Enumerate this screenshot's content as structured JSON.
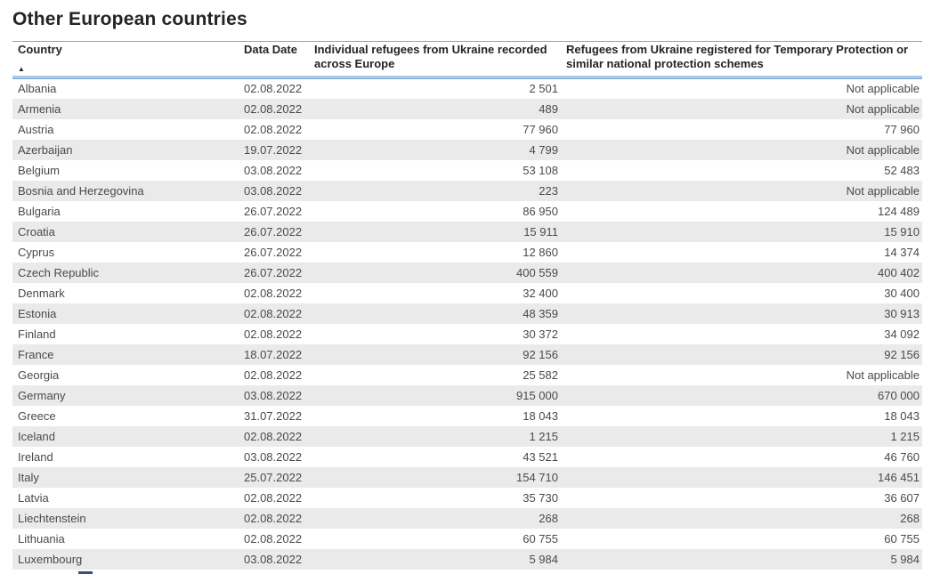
{
  "title": "Other European countries",
  "icons": {
    "sort_ascending": "▲"
  },
  "colors": {
    "header_separator": "#a9cbe9",
    "alt_row_background": "#eaeaea",
    "header_text": "#252423",
    "body_text": "#4a4a4a"
  },
  "table": {
    "columns": [
      {
        "label": "Country",
        "align": "left",
        "sort": "ascending"
      },
      {
        "label": "Data Date",
        "align": "left",
        "sort": "none"
      },
      {
        "label": "Individual refugees from Ukraine recorded across Europe",
        "align": "left",
        "sort": "none"
      },
      {
        "label": "Refugees from Ukraine registered for Temporary Protection or similar national protection schemes",
        "align": "left",
        "sort": "none"
      }
    ],
    "na_display": "Not applicable",
    "rows": [
      {
        "country": "Albania",
        "date": "02.08.2022",
        "individual": "2 501",
        "temporary": "Not applicable"
      },
      {
        "country": "Armenia",
        "date": "02.08.2022",
        "individual": "489",
        "temporary": "Not applicable"
      },
      {
        "country": "Austria",
        "date": "02.08.2022",
        "individual": "77 960",
        "temporary": "77 960"
      },
      {
        "country": "Azerbaijan",
        "date": "19.07.2022",
        "individual": "4 799",
        "temporary": "Not applicable"
      },
      {
        "country": "Belgium",
        "date": "03.08.2022",
        "individual": "53 108",
        "temporary": "52 483"
      },
      {
        "country": "Bosnia and Herzegovina",
        "date": "03.08.2022",
        "individual": "223",
        "temporary": "Not applicable"
      },
      {
        "country": "Bulgaria",
        "date": "26.07.2022",
        "individual": "86 950",
        "temporary": "124 489"
      },
      {
        "country": "Croatia",
        "date": "26.07.2022",
        "individual": "15 911",
        "temporary": "15 910"
      },
      {
        "country": "Cyprus",
        "date": "26.07.2022",
        "individual": "12 860",
        "temporary": "14 374"
      },
      {
        "country": "Czech Republic",
        "date": "26.07.2022",
        "individual": "400 559",
        "temporary": "400 402"
      },
      {
        "country": "Denmark",
        "date": "02.08.2022",
        "individual": "32 400",
        "temporary": "30 400"
      },
      {
        "country": "Estonia",
        "date": "02.08.2022",
        "individual": "48 359",
        "temporary": "30 913"
      },
      {
        "country": "Finland",
        "date": "02.08.2022",
        "individual": "30 372",
        "temporary": "34 092"
      },
      {
        "country": "France",
        "date": "18.07.2022",
        "individual": "92 156",
        "temporary": "92 156"
      },
      {
        "country": "Georgia",
        "date": "02.08.2022",
        "individual": "25 582",
        "temporary": "Not applicable"
      },
      {
        "country": "Germany",
        "date": "03.08.2022",
        "individual": "915 000",
        "temporary": "670 000"
      },
      {
        "country": "Greece",
        "date": "31.07.2022",
        "individual": "18 043",
        "temporary": "18 043"
      },
      {
        "country": "Iceland",
        "date": "02.08.2022",
        "individual": "1 215",
        "temporary": "1 215"
      },
      {
        "country": "Ireland",
        "date": "03.08.2022",
        "individual": "43 521",
        "temporary": "46 760"
      },
      {
        "country": "Italy",
        "date": "25.07.2022",
        "individual": "154 710",
        "temporary": "146 451"
      },
      {
        "country": "Latvia",
        "date": "02.08.2022",
        "individual": "35 730",
        "temporary": "36 607"
      },
      {
        "country": "Liechtenstein",
        "date": "02.08.2022",
        "individual": "268",
        "temporary": "268"
      },
      {
        "country": "Lithuania",
        "date": "02.08.2022",
        "individual": "60 755",
        "temporary": "60 755"
      },
      {
        "country": "Luxembourg",
        "date": "03.08.2022",
        "individual": "5 984",
        "temporary": "5 984"
      }
    ]
  },
  "chart_data": {
    "type": "table",
    "title": "Other European countries",
    "columns": [
      "Country",
      "Data Date",
      "Individual refugees from Ukraine recorded across Europe",
      "Refugees from Ukraine registered for Temporary Protection or similar national protection schemes"
    ],
    "na_display": "Not applicable",
    "rows": [
      [
        "Albania",
        "02.08.2022",
        2501,
        null
      ],
      [
        "Armenia",
        "02.08.2022",
        489,
        null
      ],
      [
        "Austria",
        "02.08.2022",
        77960,
        77960
      ],
      [
        "Azerbaijan",
        "19.07.2022",
        4799,
        null
      ],
      [
        "Belgium",
        "03.08.2022",
        53108,
        52483
      ],
      [
        "Bosnia and Herzegovina",
        "03.08.2022",
        223,
        null
      ],
      [
        "Bulgaria",
        "26.07.2022",
        86950,
        124489
      ],
      [
        "Croatia",
        "26.07.2022",
        15911,
        15910
      ],
      [
        "Cyprus",
        "26.07.2022",
        12860,
        14374
      ],
      [
        "Czech Republic",
        "26.07.2022",
        400559,
        400402
      ],
      [
        "Denmark",
        "02.08.2022",
        32400,
        30400
      ],
      [
        "Estonia",
        "02.08.2022",
        48359,
        30913
      ],
      [
        "Finland",
        "02.08.2022",
        30372,
        34092
      ],
      [
        "France",
        "18.07.2022",
        92156,
        92156
      ],
      [
        "Georgia",
        "02.08.2022",
        25582,
        null
      ],
      [
        "Germany",
        "03.08.2022",
        915000,
        670000
      ],
      [
        "Greece",
        "31.07.2022",
        18043,
        18043
      ],
      [
        "Iceland",
        "02.08.2022",
        1215,
        1215
      ],
      [
        "Ireland",
        "03.08.2022",
        43521,
        46760
      ],
      [
        "Italy",
        "25.07.2022",
        154710,
        146451
      ],
      [
        "Latvia",
        "02.08.2022",
        35730,
        36607
      ],
      [
        "Liechtenstein",
        "02.08.2022",
        268,
        268
      ],
      [
        "Lithuania",
        "02.08.2022",
        60755,
        60755
      ],
      [
        "Luxembourg",
        "03.08.2022",
        5984,
        5984
      ]
    ]
  }
}
